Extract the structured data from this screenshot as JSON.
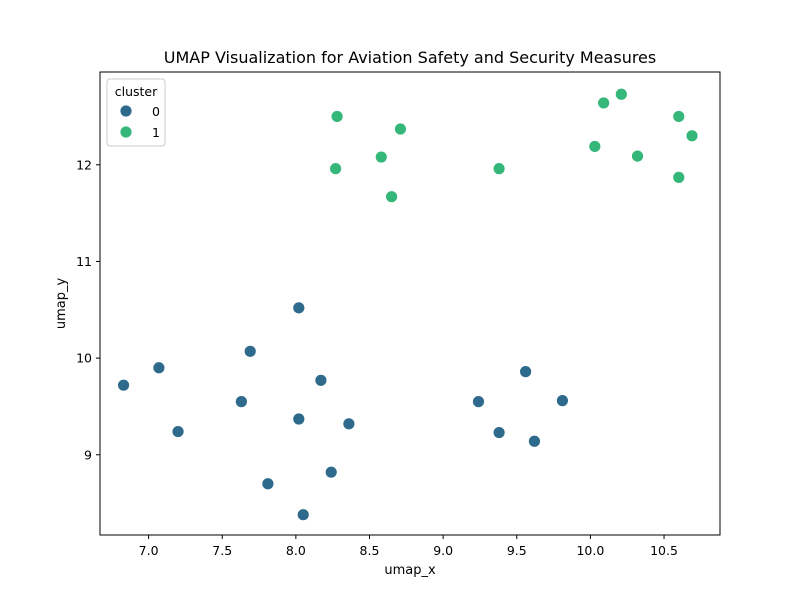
{
  "chart_data": {
    "type": "scatter",
    "title": "UMAP Visualization for Aviation Safety and Security Measures",
    "xlabel": "umap_x",
    "ylabel": "umap_y",
    "xlim": [
      6.67,
      10.88
    ],
    "ylim": [
      8.17,
      12.96
    ],
    "xticks": [
      7.0,
      7.5,
      8.0,
      8.5,
      9.0,
      9.5,
      10.0,
      10.5
    ],
    "xtick_labels": [
      "7.0",
      "7.5",
      "8.0",
      "8.5",
      "9.0",
      "9.5",
      "10.0",
      "10.5"
    ],
    "yticks": [
      9,
      10,
      11,
      12
    ],
    "ytick_labels": [
      "9",
      "10",
      "11",
      "12"
    ],
    "grid": false,
    "legend": {
      "title": "cluster",
      "placement": "top-left"
    },
    "series": [
      {
        "name": "0",
        "color": "#2e6a8c",
        "points": [
          {
            "x": 6.83,
            "y": 9.72
          },
          {
            "x": 7.07,
            "y": 9.9
          },
          {
            "x": 7.2,
            "y": 9.24
          },
          {
            "x": 7.63,
            "y": 9.55
          },
          {
            "x": 7.69,
            "y": 10.07
          },
          {
            "x": 7.81,
            "y": 8.7
          },
          {
            "x": 8.02,
            "y": 10.52
          },
          {
            "x": 8.02,
            "y": 9.37
          },
          {
            "x": 8.05,
            "y": 8.38
          },
          {
            "x": 8.17,
            "y": 9.77
          },
          {
            "x": 8.24,
            "y": 8.82
          },
          {
            "x": 8.36,
            "y": 9.32
          },
          {
            "x": 9.24,
            "y": 9.55
          },
          {
            "x": 9.38,
            "y": 9.23
          },
          {
            "x": 9.56,
            "y": 9.86
          },
          {
            "x": 9.62,
            "y": 9.14
          },
          {
            "x": 9.81,
            "y": 9.56
          }
        ]
      },
      {
        "name": "1",
        "color": "#35b779",
        "points": [
          {
            "x": 8.27,
            "y": 11.96
          },
          {
            "x": 8.28,
            "y": 12.5
          },
          {
            "x": 8.58,
            "y": 12.08
          },
          {
            "x": 8.65,
            "y": 11.67
          },
          {
            "x": 8.71,
            "y": 12.37
          },
          {
            "x": 9.38,
            "y": 11.96
          },
          {
            "x": 10.03,
            "y": 12.19
          },
          {
            "x": 10.09,
            "y": 12.64
          },
          {
            "x": 10.21,
            "y": 12.73
          },
          {
            "x": 10.32,
            "y": 12.09
          },
          {
            "x": 10.6,
            "y": 11.87
          },
          {
            "x": 10.6,
            "y": 12.5
          },
          {
            "x": 10.69,
            "y": 12.3
          }
        ]
      }
    ]
  }
}
